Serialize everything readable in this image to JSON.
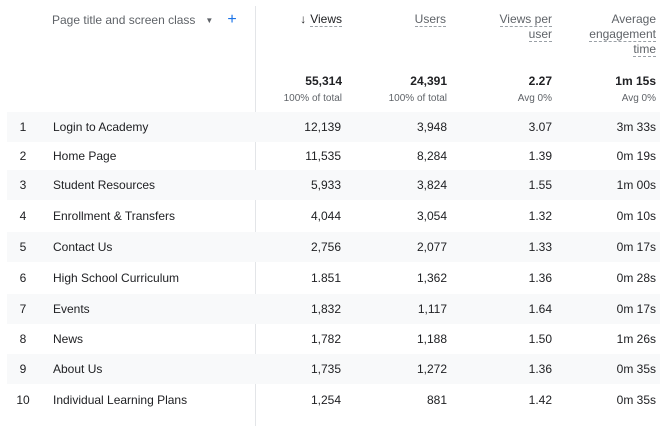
{
  "header": {
    "dimension_label": "Page title and screen class",
    "dimension_caret_icon": "triangle-down-icon",
    "add_dimension_icon": "plus-icon",
    "sort_icon": "arrow-down-icon",
    "views_label": "Views",
    "users_label": "Users",
    "views_per_user_label": [
      "Views per",
      "user"
    ],
    "avg_engagement_label": [
      "Average",
      "engagement",
      "time"
    ]
  },
  "totals": {
    "views": "55,314",
    "views_sub": "100% of total",
    "users": "24,391",
    "users_sub": "100% of total",
    "views_per_user": "2.27",
    "views_per_user_sub": "Avg 0%",
    "avg_time": "1m 15s",
    "avg_time_sub": "Avg 0%"
  },
  "rows": [
    {
      "index": "1",
      "title": "Login to Academy",
      "views": "12,139",
      "users": "3,948",
      "views_per_user": "3.07",
      "avg_time": "3m 33s"
    },
    {
      "index": "2",
      "title": "Home Page",
      "views": "11,535",
      "users": "8,284",
      "views_per_user": "1.39",
      "avg_time": "0m 19s"
    },
    {
      "index": "3",
      "title": "Student Resources",
      "views": "5,933",
      "users": "3,824",
      "views_per_user": "1.55",
      "avg_time": "1m 00s"
    },
    {
      "index": "4",
      "title": "Enrollment & Transfers",
      "views": "4,044",
      "users": "3,054",
      "views_per_user": "1.32",
      "avg_time": "0m 10s"
    },
    {
      "index": "5",
      "title": "Contact Us",
      "views": "2,756",
      "users": "2,077",
      "views_per_user": "1.33",
      "avg_time": "0m 17s"
    },
    {
      "index": "6",
      "title": "High School Curriculum",
      "views": "1.851",
      "users": "1,362",
      "views_per_user": "1.36",
      "avg_time": "0m 28s"
    },
    {
      "index": "7",
      "title": "Events",
      "views": "1,832",
      "users": "1,117",
      "views_per_user": "1.64",
      "avg_time": "0m 17s"
    },
    {
      "index": "8",
      "title": "News",
      "views": "1,782",
      "users": "1,188",
      "views_per_user": "1.50",
      "avg_time": "1m 26s"
    },
    {
      "index": "9",
      "title": "About Us",
      "views": "1,735",
      "users": "1,272",
      "views_per_user": "1.36",
      "avg_time": "0m 35s"
    },
    {
      "index": "10",
      "title": "Individual Learning Plans",
      "views": "1,254",
      "users": "881",
      "views_per_user": "1.42",
      "avg_time": "0m 35s"
    }
  ]
}
